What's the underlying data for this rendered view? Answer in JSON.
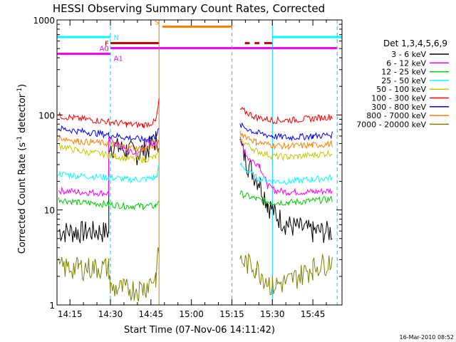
{
  "chart_data": {
    "type": "line",
    "title": "HESSI Observing Summary Count Rates, Corrected",
    "xlabel": "Start Time (07-Nov-06 14:11:42)",
    "ylabel": "Corrected Count Rate (s-1 detector-1)",
    "ylabel_parts": {
      "main": "Corrected Count Rate (s",
      "sup1": "-1",
      "mid": " detector",
      "sup2": "-1",
      "end": ")"
    },
    "yscale": "log",
    "xlim": [
      14.17,
      15.93
    ],
    "ylim": [
      1,
      1000
    ],
    "x_tick_labels": [
      {
        "label": "14:15",
        "x": 14.25
      },
      {
        "label": "14:30",
        "x": 14.5
      },
      {
        "label": "14:45",
        "x": 14.75
      },
      {
        "label": "15:00",
        "x": 15.0
      },
      {
        "label": "15:15",
        "x": 15.25
      },
      {
        "label": "15:30",
        "x": 15.5
      },
      {
        "label": "15:45",
        "x": 15.75
      }
    ],
    "y_tick_labels": [
      {
        "label": "1",
        "y": 1
      },
      {
        "label": "10",
        "y": 10
      },
      {
        "label": "100",
        "y": 100
      },
      {
        "label": "1000",
        "y": 1000
      }
    ],
    "legend_title": "Det 1,3,4,5,6,9",
    "legend_position": "right",
    "timestamp": "16-Mar-2010 08:52",
    "series": [
      {
        "name": "3 - 6 keV",
        "color": "#000000",
        "points": [
          [
            14.18,
            6
          ],
          [
            14.3,
            6
          ],
          [
            14.49,
            6
          ],
          [
            14.49,
            50
          ],
          [
            14.55,
            45
          ],
          [
            14.6,
            43
          ],
          [
            14.67,
            40
          ],
          [
            14.73,
            45
          ],
          [
            14.78,
            55
          ],
          [
            14.8,
            55
          ],
          [
            15.3,
            50
          ],
          [
            15.35,
            30
          ],
          [
            15.42,
            20
          ],
          [
            15.47,
            12
          ],
          [
            15.52,
            9
          ],
          [
            15.6,
            7
          ],
          [
            15.75,
            6
          ],
          [
            15.87,
            6
          ]
        ]
      },
      {
        "name": "6 - 12 keV",
        "color": "#ff00ff",
        "points": [
          [
            14.18,
            16
          ],
          [
            14.3,
            15.5
          ],
          [
            14.49,
            15
          ],
          [
            14.49,
            55
          ],
          [
            14.55,
            48
          ],
          [
            14.6,
            42
          ],
          [
            14.67,
            38
          ],
          [
            14.72,
            50
          ],
          [
            14.78,
            50
          ],
          [
            14.8,
            55
          ],
          [
            15.3,
            55
          ],
          [
            15.35,
            35
          ],
          [
            15.42,
            30
          ],
          [
            15.47,
            18
          ],
          [
            15.52,
            16
          ],
          [
            15.6,
            15.5
          ],
          [
            15.75,
            15.5
          ],
          [
            15.87,
            16
          ]
        ]
      },
      {
        "name": "12 - 25 keV",
        "color": "#00cc00",
        "points": [
          [
            14.18,
            13
          ],
          [
            14.3,
            12
          ],
          [
            14.49,
            11.5
          ],
          [
            14.6,
            11
          ],
          [
            14.7,
            11
          ],
          [
            14.78,
            11
          ],
          [
            14.8,
            13
          ],
          [
            15.3,
            15
          ],
          [
            15.4,
            13
          ],
          [
            15.5,
            12
          ],
          [
            15.6,
            12
          ],
          [
            15.75,
            12.5
          ],
          [
            15.87,
            13
          ]
        ]
      },
      {
        "name": "25 - 50 keV",
        "color": "#00ffff",
        "points": [
          [
            14.18,
            24
          ],
          [
            14.3,
            23
          ],
          [
            14.49,
            22
          ],
          [
            14.6,
            21
          ],
          [
            14.7,
            21
          ],
          [
            14.78,
            22
          ],
          [
            14.8,
            28
          ],
          [
            15.3,
            30
          ],
          [
            15.4,
            22
          ],
          [
            15.5,
            20
          ],
          [
            15.6,
            20
          ],
          [
            15.75,
            21
          ],
          [
            15.87,
            22
          ]
        ]
      },
      {
        "name": "50 - 100 keV",
        "color": "#c8c800",
        "points": [
          [
            14.18,
            48
          ],
          [
            14.3,
            42
          ],
          [
            14.49,
            38
          ],
          [
            14.6,
            35
          ],
          [
            14.7,
            34
          ],
          [
            14.78,
            36
          ],
          [
            14.8,
            40
          ],
          [
            15.3,
            55
          ],
          [
            15.4,
            42
          ],
          [
            15.5,
            37
          ],
          [
            15.6,
            36
          ],
          [
            15.75,
            38
          ],
          [
            15.87,
            40
          ]
        ]
      },
      {
        "name": "100 - 300 keV",
        "color": "#ff0000",
        "points": [
          [
            14.18,
            98
          ],
          [
            14.3,
            92
          ],
          [
            14.49,
            85
          ],
          [
            14.6,
            80
          ],
          [
            14.7,
            78
          ],
          [
            14.78,
            85
          ],
          [
            14.8,
            140
          ],
          [
            15.3,
            115
          ],
          [
            15.4,
            95
          ],
          [
            15.5,
            88
          ],
          [
            15.6,
            88
          ],
          [
            15.75,
            92
          ],
          [
            15.87,
            96
          ]
        ]
      },
      {
        "name": "300 - 800 keV",
        "color": "#0000ff",
        "points": [
          [
            14.18,
            72
          ],
          [
            14.3,
            68
          ],
          [
            14.49,
            62
          ],
          [
            14.6,
            58
          ],
          [
            14.7,
            55
          ],
          [
            14.78,
            60
          ],
          [
            14.8,
            70
          ],
          [
            15.3,
            78
          ],
          [
            15.4,
            65
          ],
          [
            15.5,
            60
          ],
          [
            15.6,
            58
          ],
          [
            15.75,
            60
          ],
          [
            15.87,
            62
          ]
        ]
      },
      {
        "name": "800 - 7000 keV",
        "color": "#ff8000",
        "points": [
          [
            14.18,
            58
          ],
          [
            14.3,
            53
          ],
          [
            14.49,
            50
          ],
          [
            14.6,
            46
          ],
          [
            14.7,
            44
          ],
          [
            14.78,
            46
          ],
          [
            14.8,
            54
          ],
          [
            15.3,
            65
          ],
          [
            15.4,
            52
          ],
          [
            15.5,
            48
          ],
          [
            15.6,
            47
          ],
          [
            15.75,
            48
          ],
          [
            15.87,
            50
          ]
        ]
      },
      {
        "name": "7000 - 20000 keV",
        "color": "#808000",
        "points": [
          [
            14.18,
            2.5
          ],
          [
            14.3,
            2.5
          ],
          [
            14.49,
            2.5
          ],
          [
            14.5,
            1.5
          ],
          [
            14.6,
            1.5
          ],
          [
            14.7,
            1.5
          ],
          [
            14.78,
            2
          ],
          [
            14.8,
            4
          ],
          [
            15.3,
            3
          ],
          [
            15.4,
            2.5
          ],
          [
            15.5,
            1.6
          ],
          [
            15.6,
            1.8
          ],
          [
            15.75,
            2.5
          ],
          [
            15.87,
            3
          ]
        ]
      }
    ],
    "flags": [
      {
        "label": "N",
        "color": "#00ffff",
        "y": 660,
        "x_segments": [
          [
            14.17,
            14.5
          ],
          [
            15.5,
            15.93
          ]
        ]
      },
      {
        "label": "F",
        "color": "#cc0000",
        "y": 570,
        "x_segments": [
          [
            14.5,
            14.8
          ],
          [
            15.33,
            15.36
          ],
          [
            15.39,
            15.42
          ],
          [
            15.45,
            15.5
          ]
        ]
      },
      {
        "label": "S",
        "color": "#ff8000",
        "y": 850,
        "x_segments": [
          [
            14.82,
            15.25
          ]
        ]
      },
      {
        "label": "A0",
        "color": "#ff00ff",
        "y": 505,
        "x_segments": [
          [
            14.5,
            15.9
          ]
        ]
      },
      {
        "label": "A1",
        "color": "#ff00ff",
        "y": 440,
        "x_segments": [
          [
            14.17,
            14.5
          ]
        ]
      }
    ],
    "vertical_markers": [
      {
        "x": 14.5,
        "color": "#00ccff",
        "style": "dashed"
      },
      {
        "x": 14.8,
        "color": "#c88000",
        "style": "solid"
      },
      {
        "x": 15.25,
        "color": "#ff8000",
        "style": "dashed"
      },
      {
        "x": 15.5,
        "color": "#00ccff",
        "style": "solid"
      },
      {
        "x": 15.9,
        "color": "#00ccff",
        "style": "dashed"
      }
    ]
  }
}
